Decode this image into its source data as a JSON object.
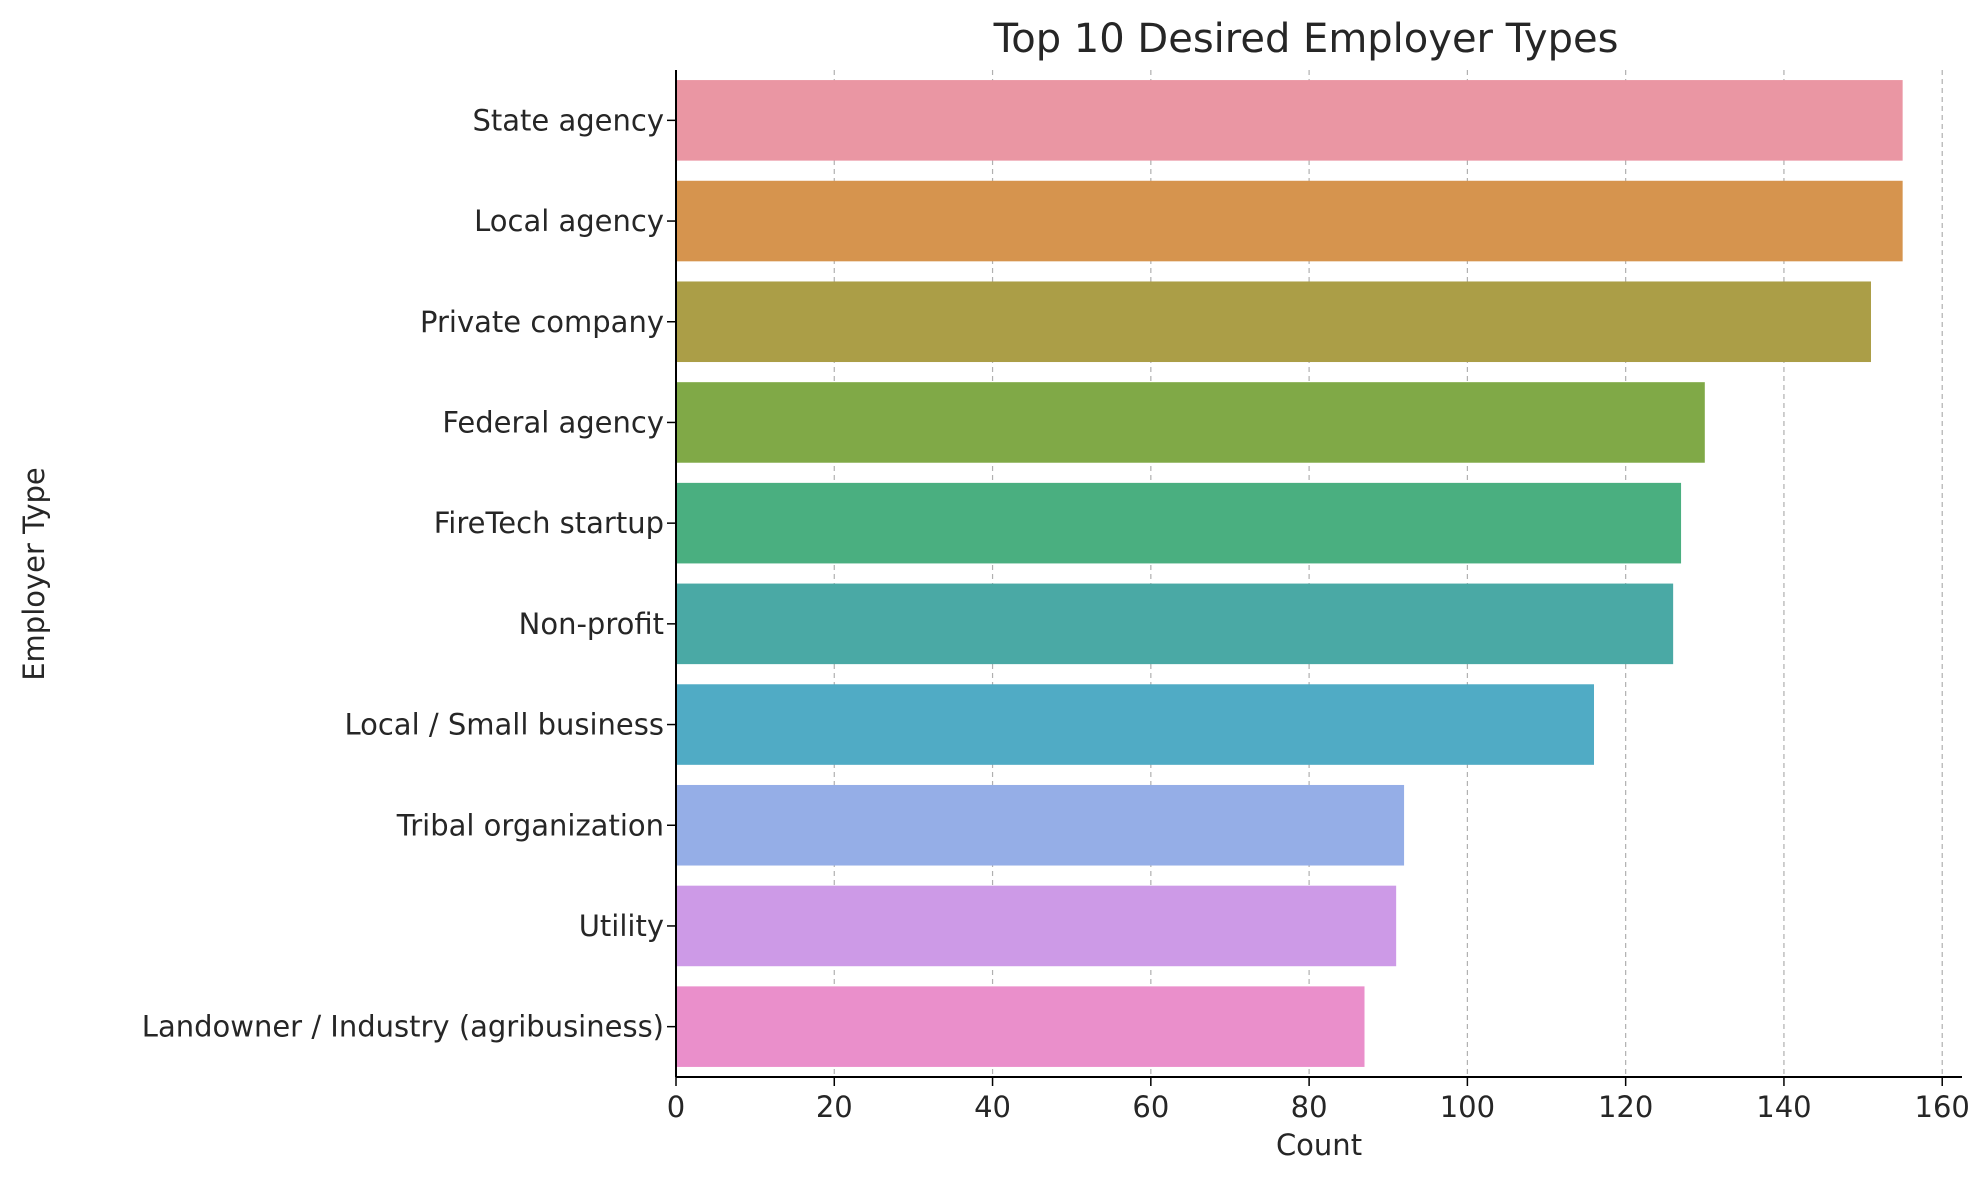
{
  "chart_data": {
    "type": "bar",
    "orientation": "horizontal",
    "title": "Top 10 Desired Employer Types",
    "xlabel": "Count",
    "ylabel": "Employer Type",
    "xlim": [
      0,
      162.5
    ],
    "xticks": [
      0,
      20,
      40,
      60,
      80,
      100,
      120,
      140,
      160
    ],
    "grid": "x-dashed",
    "legend": "none",
    "categories": [
      "State agency",
      "Local agency",
      "Private company",
      "Federal agency",
      "FireTech startup",
      "Non-profit",
      "Local / Small business",
      "Tribal organization",
      "Utility",
      "Landowner / Industry (agribusiness)"
    ],
    "values": [
      155,
      155,
      151,
      130,
      127,
      126,
      116,
      92,
      91,
      87
    ],
    "colors": [
      "#ea96a3",
      "#d6944e",
      "#ab9e47",
      "#80a947",
      "#4aaf80",
      "#4aa9a5",
      "#50abc5",
      "#95aee7",
      "#cd9ae7",
      "#ea8fcb"
    ]
  }
}
